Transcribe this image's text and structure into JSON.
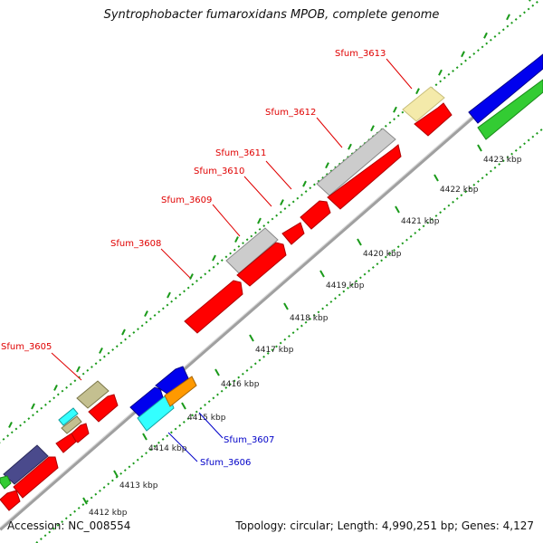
{
  "title": "Syntrophobacter fumaroxidans MPOB, complete genome",
  "accession_label": "Accession: NC_008554",
  "summary_label": "Topology: circular; Length: 4,990,251 bp; Genes: 4,127",
  "ticks": [
    "4412 kbp",
    "4413 kbp",
    "4414 kbp",
    "4415 kbp",
    "4416 kbp",
    "4417 kbp",
    "4418 kbp",
    "4419 kbp",
    "4420 kbp",
    "4421 kbp",
    "4422 kbp",
    "4423 kbp"
  ],
  "gene_labels": [
    {
      "text": "Sfum_3613",
      "strand": "forward"
    },
    {
      "text": "Sfum_3612",
      "strand": "forward"
    },
    {
      "text": "Sfum_3611",
      "strand": "forward"
    },
    {
      "text": "Sfum_3610",
      "strand": "forward"
    },
    {
      "text": "Sfum_3609",
      "strand": "forward"
    },
    {
      "text": "Sfum_3608",
      "strand": "forward"
    },
    {
      "text": "Sfum_3605",
      "strand": "forward"
    },
    {
      "text": "Sfum_3607",
      "strand": "reverse"
    },
    {
      "text": "Sfum_3606",
      "strand": "reverse"
    }
  ],
  "colors": {
    "forward_label": "#e00000",
    "reverse_label": "#0000c8",
    "tick_green": "#1a9a1a",
    "backbone": "#a0a0a0",
    "red": "#ff0000",
    "gray": "#cccccc",
    "yellow": "#f4eaaa",
    "blue": "#0000ee",
    "green": "#33cc33",
    "cyan": "#33ffff",
    "orange": "#ff9900",
    "olive": "#c4c090",
    "navy": "#4a4a8c"
  }
}
